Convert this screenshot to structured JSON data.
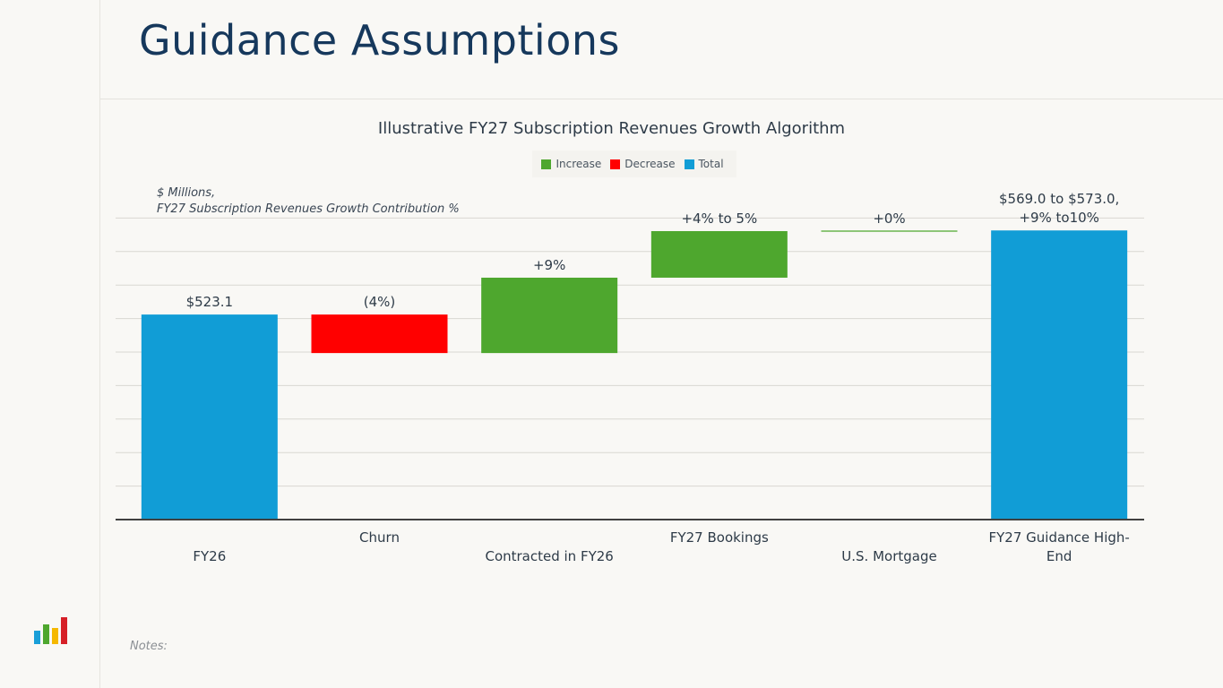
{
  "page": {
    "title": "Guidance Assumptions",
    "notes_label": "Notes:"
  },
  "colors": {
    "title": "#16385c",
    "increase": "#4ea72e",
    "decrease": "#ff0000",
    "total": "#119dd6",
    "gridline": "#d9d7d2",
    "axis": "#404040",
    "logo": [
      "#1a9fd8",
      "#4ea72e",
      "#f5b800",
      "#d62027"
    ]
  },
  "chart_data": {
    "type": "waterfall",
    "title": "Illustrative FY27 Subscription Revenues Growth Algorithm",
    "subtitle_lines": [
      "$ Millions,",
      "FY27 Subscription Revenues Growth Contribution %"
    ],
    "legend": [
      {
        "label": "Increase",
        "kind": "increase"
      },
      {
        "label": "Decrease",
        "kind": "decrease"
      },
      {
        "label": "Total",
        "kind": "total"
      }
    ],
    "legend_placement": "top-center",
    "grid": true,
    "y_axis_labels_shown": false,
    "ylim_units": [
      0,
      9
    ],
    "y_units_note": "illustrative, unlabeled axis; 1 unit = 1 gridline; plotted unit values estimated",
    "categories": [
      {
        "label_lines": [
          "FY26"
        ],
        "label_row": "low"
      },
      {
        "label_lines": [
          "Churn"
        ],
        "label_row": "high"
      },
      {
        "label_lines": [
          "Contracted in FY26"
        ],
        "label_row": "low"
      },
      {
        "label_lines": [
          "FY27 Bookings"
        ],
        "label_row": "high"
      },
      {
        "label_lines": [
          "U.S. Mortgage"
        ],
        "label_row": "low"
      },
      {
        "label_lines": [
          "FY27 Guidance High-",
          "End"
        ],
        "label_row": "high"
      }
    ],
    "bars": [
      {
        "kind": "total",
        "start": 0,
        "end": 6.12,
        "data_label": [
          "$523.1"
        ]
      },
      {
        "kind": "decrease",
        "start": 6.12,
        "end": 4.97,
        "data_label": [
          "(4%)"
        ]
      },
      {
        "kind": "increase",
        "start": 4.97,
        "end": 7.22,
        "data_label": [
          "+9%"
        ]
      },
      {
        "kind": "increase",
        "start": 7.22,
        "end": 8.61,
        "data_label": [
          "+4% to 5%"
        ]
      },
      {
        "kind": "increase",
        "start": 8.61,
        "end": 8.61,
        "data_label": [
          "+0%"
        ]
      },
      {
        "kind": "total",
        "start": 0,
        "end": 8.63,
        "data_label": [
          "$569.0 to $573.0,",
          "+9% to10%"
        ]
      }
    ]
  }
}
